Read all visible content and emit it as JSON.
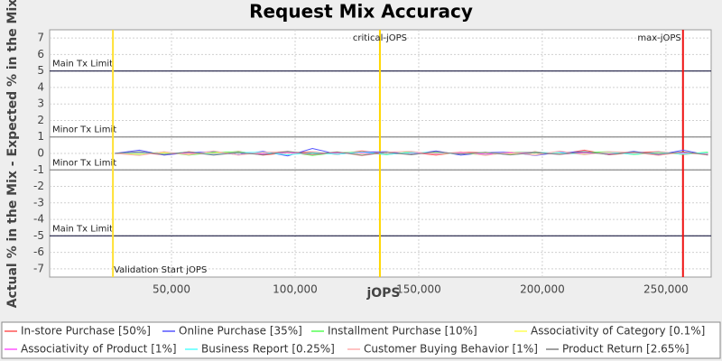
{
  "chart_data": {
    "type": "line",
    "title": "Request Mix Accuracy",
    "x_label": "jOPS",
    "y_label": "Actual % in the Mix - Expected % in the Mix",
    "xlim": [
      700,
      268300
    ],
    "ylim": [
      -7.5,
      7.5
    ],
    "xticks": [
      {
        "value": 50000,
        "label": "50,000"
      },
      {
        "value": 100000,
        "label": "100,000"
      },
      {
        "value": 150000,
        "label": "150,000"
      },
      {
        "value": 200000,
        "label": "200,000"
      },
      {
        "value": 250000,
        "label": "250,000"
      }
    ],
    "yticks": [
      -7,
      -6,
      -5,
      -4,
      -3,
      -2,
      -1,
      0,
      1,
      2,
      3,
      4,
      5,
      6,
      7
    ],
    "grid": true,
    "hlines": [
      {
        "value": 5,
        "label": "Main Tx Limit",
        "color": "#1a1a40"
      },
      {
        "value": 1,
        "label": "Minor Tx Limit",
        "color": "#8a8a8a"
      },
      {
        "value": -1,
        "label": "Minor Tx Limit",
        "color": "#8a8a8a"
      },
      {
        "value": -5,
        "label": "Main Tx Limit",
        "color": "#1a1a40"
      }
    ],
    "vlines": [
      {
        "value": 26300,
        "label": "Validation Start jOPS",
        "color": "#ffe033"
      },
      {
        "value": 134300,
        "label": "critical-jOPS",
        "color": "#ffd700"
      },
      {
        "value": 256900,
        "label": "max-jOPS",
        "color": "#ee1111"
      }
    ],
    "x": [
      27000,
      37000,
      47000,
      57000,
      67000,
      77000,
      87000,
      97000,
      107000,
      117000,
      127000,
      137000,
      147000,
      157000,
      167000,
      177000,
      187000,
      197000,
      207000,
      217000,
      227000,
      237000,
      247000,
      257000,
      267000
    ],
    "series": [
      {
        "name": "In-store Purchase [50%]",
        "color": "#ff5555",
        "values": [
          0,
          0.05,
          -0.08,
          0.1,
          -0.05,
          0.12,
          -0.1,
          0.05,
          0.08,
          -0.06,
          0.15,
          -0.04,
          0.06,
          -0.1,
          0.08,
          0.04,
          -0.07,
          0.1,
          -0.05,
          0.2,
          -0.08,
          0.05,
          0.1,
          -0.06,
          0.05
        ]
      },
      {
        "name": "Online Purchase [35%]",
        "color": "#5555ff",
        "values": [
          0,
          0.2,
          -0.1,
          0.05,
          0.1,
          -0.08,
          0.12,
          -0.15,
          0.3,
          -0.05,
          0.08,
          0.1,
          -0.06,
          0.15,
          -0.1,
          0.05,
          0.08,
          -0.12,
          0.06,
          0.1,
          -0.05,
          0.12,
          -0.08,
          0.2,
          -0.1
        ]
      },
      {
        "name": "Installment Purchase [10%]",
        "color": "#55ff55",
        "values": [
          0,
          -0.05,
          0.08,
          -0.1,
          0.06,
          0.1,
          -0.05,
          0.08,
          -0.12,
          0.05,
          0.07,
          -0.08,
          0.1,
          -0.05,
          0.04,
          -0.1,
          0.06,
          0.08,
          -0.04,
          0.05,
          0.1,
          -0.07,
          0.05,
          -0.05,
          0.08
        ]
      },
      {
        "name": "Associativity of Category [0.1%]",
        "color": "#ffff55",
        "values": [
          0,
          -0.02,
          0.03,
          -0.03,
          0.02,
          0.04,
          -0.02,
          0.03,
          -0.04,
          0.02,
          0.01,
          -0.03,
          0.02,
          0.03,
          -0.02,
          0.04,
          -0.03,
          0.02,
          0.01,
          -0.02,
          0.03,
          -0.01,
          0.02,
          -0.03,
          0.02
        ]
      },
      {
        "name": "Associativity of Product [1%]",
        "color": "#ff55ff",
        "values": [
          0,
          0.04,
          -0.05,
          0.03,
          -0.04,
          0.06,
          -0.03,
          0.05,
          -0.06,
          0.04,
          0.03,
          -0.05,
          0.04,
          -0.03,
          0.05,
          -0.04,
          0.03,
          0.06,
          -0.05,
          0.04,
          -0.03,
          0.05,
          -0.04,
          0.03,
          -0.05
        ]
      },
      {
        "name": "Business Report [0.25%]",
        "color": "#55ffff",
        "values": [
          0,
          0.06,
          -0.04,
          0.08,
          -0.06,
          0.05,
          0.07,
          -0.08,
          0.04,
          -0.05,
          0.09,
          -0.06,
          0.05,
          0.07,
          -0.04,
          0.06,
          -0.08,
          0.05,
          0.04,
          -0.06,
          0.07,
          -0.05,
          0.06,
          -0.04,
          0.05
        ]
      },
      {
        "name": "Customer Buying Behavior [1%]",
        "color": "#ffafaf",
        "values": [
          0,
          -0.12,
          0.1,
          -0.08,
          0.15,
          -0.1,
          0.06,
          0.12,
          -0.08,
          0.1,
          -0.14,
          0.08,
          0.12,
          -0.06,
          0.1,
          -0.12,
          0.08,
          -0.1,
          0.14,
          -0.08,
          0.1,
          0.06,
          -0.12,
          0.08,
          -0.1
        ]
      },
      {
        "name": "Product Return [2.65%]",
        "color": "#808080",
        "values": [
          0,
          0.1,
          -0.06,
          0.08,
          -0.1,
          0.05,
          -0.08,
          0.12,
          -0.05,
          0.08,
          -0.1,
          0.06,
          -0.08,
          0.1,
          -0.04,
          0.07,
          -0.09,
          0.05,
          -0.06,
          0.1,
          -0.07,
          0.08,
          -0.05,
          0.09,
          -0.08
        ]
      }
    ]
  }
}
